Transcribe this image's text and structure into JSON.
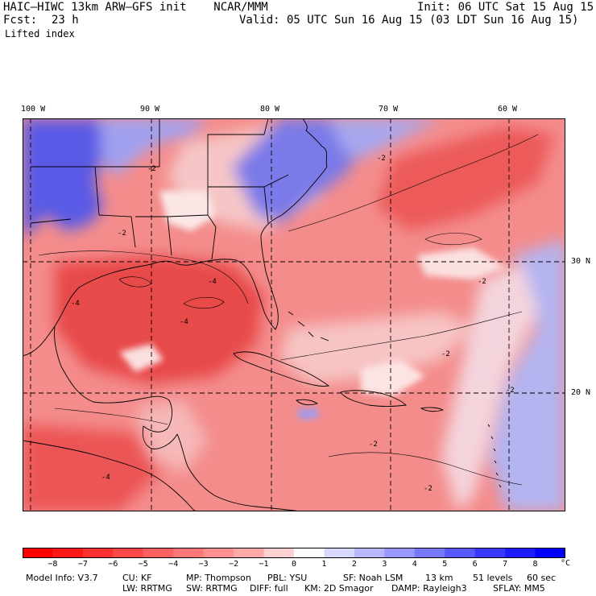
{
  "header": {
    "title_left": "HAIC–HIWC 13km ARW–GFS init    NCAR/MMM",
    "fcst_label": "Fcst:",
    "fcst_value": "23 h",
    "field_name": "Lifted index",
    "init_text": "Init: 06 UTC Sat 15 Aug 15",
    "valid_text": "Valid: 05 UTC Sun 16 Aug 15 (03 LDT Sun 16 Aug 15)"
  },
  "map": {
    "lon_labels": [
      "100 W",
      "90 W",
      "80 W",
      "70 W",
      "60 W"
    ],
    "lat_labels": [
      "30 N",
      "20 N"
    ],
    "contour_labels": [
      "-2",
      "-2",
      "-4",
      "-4",
      "-2",
      "-2",
      "-2",
      "-4",
      "-2",
      "-2",
      "-4",
      "-2"
    ],
    "field_colors": {
      "strong_negative": "#e8343c",
      "negative": "#f06a6a",
      "weak_negative": "#f7a6a6",
      "near_zero": "#fbe0e0",
      "positive": "#8c8cf0",
      "strong_positive": "#3a3ae8"
    }
  },
  "colorbar": {
    "tick_labels": [
      "−8",
      "−7",
      "−6",
      "−5",
      "−4",
      "−3",
      "−2",
      "−1",
      "0",
      "1",
      "2",
      "3",
      "4",
      "5",
      "6",
      "7",
      "8"
    ],
    "unit": "°C",
    "colors": [
      "#ff0000",
      "#ff1818",
      "#ff3030",
      "#ff4848",
      "#ff6060",
      "#ff7878",
      "#ff9090",
      "#ffa8a8",
      "#ffd0d0",
      "#ffffff",
      "#d8d8ff",
      "#b8b8ff",
      "#9898ff",
      "#7878ff",
      "#5858ff",
      "#3838ff",
      "#1c1cff",
      "#0000ff"
    ]
  },
  "model_info": {
    "line1": [
      {
        "k": "Model Info: V3.7"
      },
      {
        "k": "CU: KF"
      },
      {
        "k": "MP: Thompson"
      },
      {
        "k": "PBL: YSU"
      },
      {
        "k": "SF: Noah LSM"
      },
      {
        "k": "13 km"
      },
      {
        "k": "51 levels"
      },
      {
        "k": "60 sec"
      }
    ],
    "line2": [
      {
        "k": "LW: RRTMG"
      },
      {
        "k": "SW: RRTMG"
      },
      {
        "k": "DIFF: full"
      },
      {
        "k": "KM: 2D Smagor"
      },
      {
        "k": "DAMP: Rayleigh3"
      },
      {
        "k": "SFLAY: MM5"
      }
    ]
  }
}
